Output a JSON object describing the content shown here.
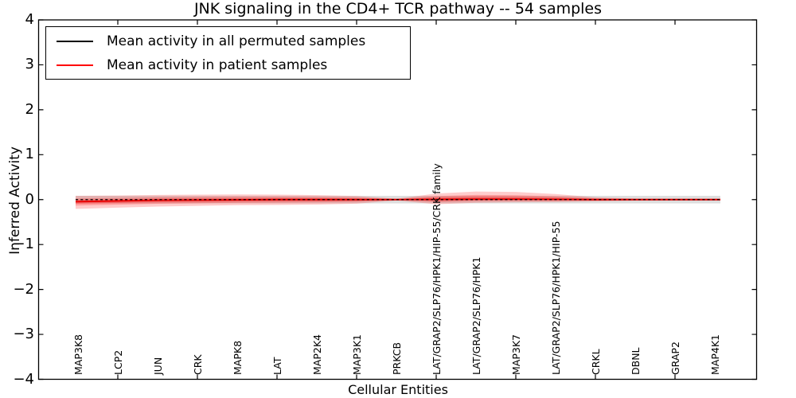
{
  "figure": {
    "title": "JNK signaling in the CD4+ TCR pathway -- 54 samples"
  },
  "legend": {
    "position": "upper-left",
    "entries": [
      {
        "label": "Mean activity in all permuted samples",
        "color": "#000000",
        "line_style": "solid"
      },
      {
        "label": "Mean activity in patient samples",
        "color": "#ff0000",
        "line_style": "solid"
      }
    ]
  },
  "colors": {
    "axis": "#000000",
    "permuted_mean_line": "#000000",
    "patient_mean_line": "#e80000",
    "patient_band_fill": "#ff0000",
    "permuted_band_fill": "#000000",
    "background": "#ffffff"
  },
  "chart_data": {
    "type": "line",
    "title": "JNK signaling in the CD4+ TCR pathway -- 54 samples",
    "xlabel": "Cellular Entities",
    "ylabel": "Inferred Activity",
    "ylim": [
      -4,
      4
    ],
    "yticks": [
      4,
      3,
      2,
      1,
      0,
      -1,
      -2,
      -3,
      -4
    ],
    "ytick_labels": [
      "4",
      "3",
      "2",
      "1",
      "0",
      "−1",
      "−2",
      "−3",
      "−4"
    ],
    "grid": false,
    "legend_position": "upper left",
    "categories": [
      "MAP3K8",
      "LCP2",
      "JUN",
      "CRK",
      "MAPK8",
      "LAT",
      "MAP2K4",
      "MAP3K1",
      "PRKCB",
      "LAT/GRAP2/SLP76/HPK1/HIP-55/CRK family",
      "LAT/GRAP2/SLP76/HPK1",
      "MAP3K7",
      "LAT/GRAP2/SLP76/HPK1/HIP-55",
      "CRKL",
      "DBNL",
      "GRAP2",
      "MAP4K1"
    ],
    "xtick_line_indices": [
      1,
      3,
      5,
      7,
      9,
      11,
      13,
      15
    ],
    "series": [
      {
        "name": "Mean activity in all permuted samples",
        "style": "dashed",
        "color": "#000000",
        "values": [
          0,
          0,
          0,
          0,
          0,
          0,
          0,
          0,
          0,
          0,
          0,
          0,
          0,
          0,
          0,
          0,
          0
        ]
      },
      {
        "name": "Mean activity in patient samples",
        "style": "solid",
        "color": "#e80000",
        "values": [
          -0.045,
          -0.03,
          -0.015,
          -0.01,
          -0.005,
          0,
          0,
          0,
          0,
          0.005,
          0.01,
          0.01,
          0.005,
          0,
          0,
          0,
          0
        ]
      }
    ],
    "bands": {
      "permuted": {
        "name": "permuted-samples-spread",
        "color": "#000000",
        "opacity": 0.13,
        "halfwidth": 0.085
      },
      "patient": {
        "name": "patient-samples-spread",
        "color": "#ff0000",
        "layer_fractions": [
          1.0,
          0.55,
          0.3
        ],
        "layer_opacities": [
          0.2,
          0.22,
          0.25
        ],
        "upper": [
          0.13,
          0.12,
          0.12,
          0.12,
          0.12,
          0.11,
          0.1,
          0.08,
          0.02,
          0.13,
          0.17,
          0.16,
          0.12,
          0.05,
          0.025,
          0.022,
          0.022
        ],
        "lower": [
          0.16,
          0.15,
          0.14,
          0.13,
          0.12,
          0.12,
          0.11,
          0.09,
          0.02,
          0.11,
          0.08,
          0.07,
          0.06,
          0.04,
          0.025,
          0.022,
          0.022
        ]
      }
    }
  }
}
